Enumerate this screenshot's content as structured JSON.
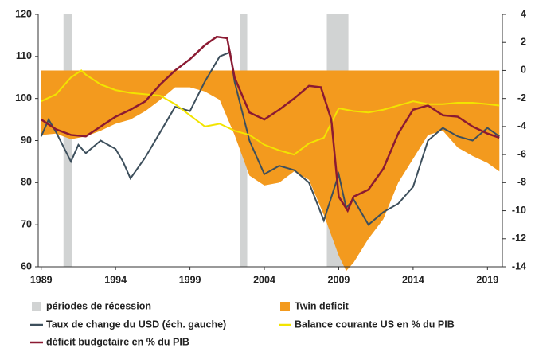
{
  "chart_data": {
    "type": "line",
    "xlim": [
      1988.8,
      2020
    ],
    "xticks": [
      1989,
      1994,
      1999,
      2004,
      2009,
      2014,
      2019
    ],
    "ylim": [
      60,
      120
    ],
    "yticks": [
      60,
      70,
      80,
      90,
      100,
      110,
      120
    ],
    "y2lim": [
      -14,
      4
    ],
    "y2ticks": [
      4,
      2,
      0,
      -2,
      -4,
      -6,
      -8,
      -10,
      -12,
      -14
    ],
    "recessions": {
      "name": "périodes de récession",
      "color": "#d1d3d3",
      "periods": [
        [
          1990.5,
          1991.05
        ],
        [
          2002.35,
          2002.85
        ],
        [
          2008.2,
          2009.65
        ]
      ]
    },
    "series": [
      {
        "name": "Twin deficit",
        "kind": "area",
        "axis": "y2",
        "color": "#f39a1e",
        "x": [
          1989,
          1990,
          1991,
          1992,
          1993,
          1994,
          1995,
          1996,
          1997,
          1998,
          1999,
          2000,
          2001,
          2002,
          2003,
          2004,
          2005,
          2006,
          2007,
          2008,
          2009,
          2009.5,
          2010,
          2011,
          2012,
          2013,
          2014,
          2015,
          2016,
          2017,
          2018,
          2019,
          2019.8
        ],
        "values": [
          -4.6,
          -4.5,
          -4.9,
          -4.7,
          -4.3,
          -3.8,
          -3.5,
          -2.9,
          -2.1,
          -1.2,
          -1.2,
          -1.5,
          -2.1,
          -4.6,
          -7.5,
          -8.2,
          -8.0,
          -7.2,
          -7.8,
          -10.3,
          -13.2,
          -14.3,
          -13.7,
          -12.0,
          -10.6,
          -8.0,
          -6.3,
          -4.6,
          -4.3,
          -5.5,
          -6.1,
          -6.6,
          -7.2
        ]
      },
      {
        "name": "Taux de change du USD (éch. gauche)",
        "kind": "line",
        "axis": "y",
        "color": "#3d4f5c",
        "x": [
          1989,
          1989.5,
          1990,
          1991,
          1991.5,
          1992,
          1993,
          1994,
          1994.5,
          1995,
          1996,
          1997,
          1998,
          1999,
          2000,
          2001,
          2001.7,
          2002,
          2003,
          2004,
          2005,
          2006,
          2007,
          2008,
          2009,
          2009.5,
          2010,
          2011,
          2012,
          2013,
          2014,
          2015,
          2016,
          2017,
          2018,
          2019,
          2019.8
        ],
        "values": [
          91,
          95,
          92,
          85,
          89,
          87,
          90,
          88,
          85,
          81,
          86,
          92,
          98,
          97,
          104,
          110,
          111,
          104,
          90,
          82,
          84,
          83,
          80,
          71,
          82,
          74,
          76,
          70,
          73,
          75,
          79,
          90,
          93,
          91,
          90,
          93,
          91
        ]
      },
      {
        "name": "Balance courante US en % du PIB",
        "kind": "line",
        "axis": "y2",
        "color": "#f2e400",
        "x": [
          1989,
          1990,
          1991,
          1991.7,
          1992,
          1993,
          1994,
          1995,
          1996,
          1997,
          1998,
          1999,
          2000,
          2001,
          2002,
          2003,
          2004,
          2005,
          2006,
          2007,
          2008,
          2009,
          2010,
          2011,
          2012,
          2013,
          2014,
          2015,
          2016,
          2017,
          2018,
          2019,
          2019.8
        ],
        "values": [
          -2.2,
          -1.7,
          -0.5,
          0.0,
          -0.3,
          -1.0,
          -1.4,
          -1.6,
          -1.7,
          -1.8,
          -2.4,
          -3.2,
          -4.0,
          -3.8,
          -4.3,
          -4.6,
          -5.3,
          -5.7,
          -6.0,
          -5.2,
          -4.8,
          -2.7,
          -2.9,
          -3.0,
          -2.8,
          -2.5,
          -2.2,
          -2.4,
          -2.4,
          -2.3,
          -2.3,
          -2.4,
          -2.5
        ]
      },
      {
        "name": "déficit budgetaire en % du PIB",
        "kind": "line",
        "axis": "y2",
        "color": "#8b1a32",
        "x": [
          1989,
          1990,
          1991,
          1992,
          1993,
          1994,
          1995,
          1996,
          1997,
          1998,
          1999,
          2000,
          2000.8,
          2001.5,
          2002,
          2003,
          2004,
          2005,
          2006,
          2007,
          2007.8,
          2008.5,
          2009,
          2009.6,
          2010,
          2011,
          2012,
          2013,
          2014,
          2015,
          2016,
          2017,
          2018,
          2019,
          2019.8
        ],
        "values": [
          -3.5,
          -4.2,
          -4.6,
          -4.7,
          -4.0,
          -3.3,
          -2.8,
          -2.2,
          -1.0,
          0.0,
          0.8,
          1.8,
          2.4,
          2.3,
          -0.5,
          -3.0,
          -3.5,
          -2.8,
          -2.0,
          -1.1,
          -1.2,
          -3.5,
          -9.0,
          -10.0,
          -9.0,
          -8.5,
          -7.0,
          -4.5,
          -2.8,
          -2.5,
          -3.2,
          -3.3,
          -4.0,
          -4.5,
          -4.8
        ]
      }
    ]
  }
}
